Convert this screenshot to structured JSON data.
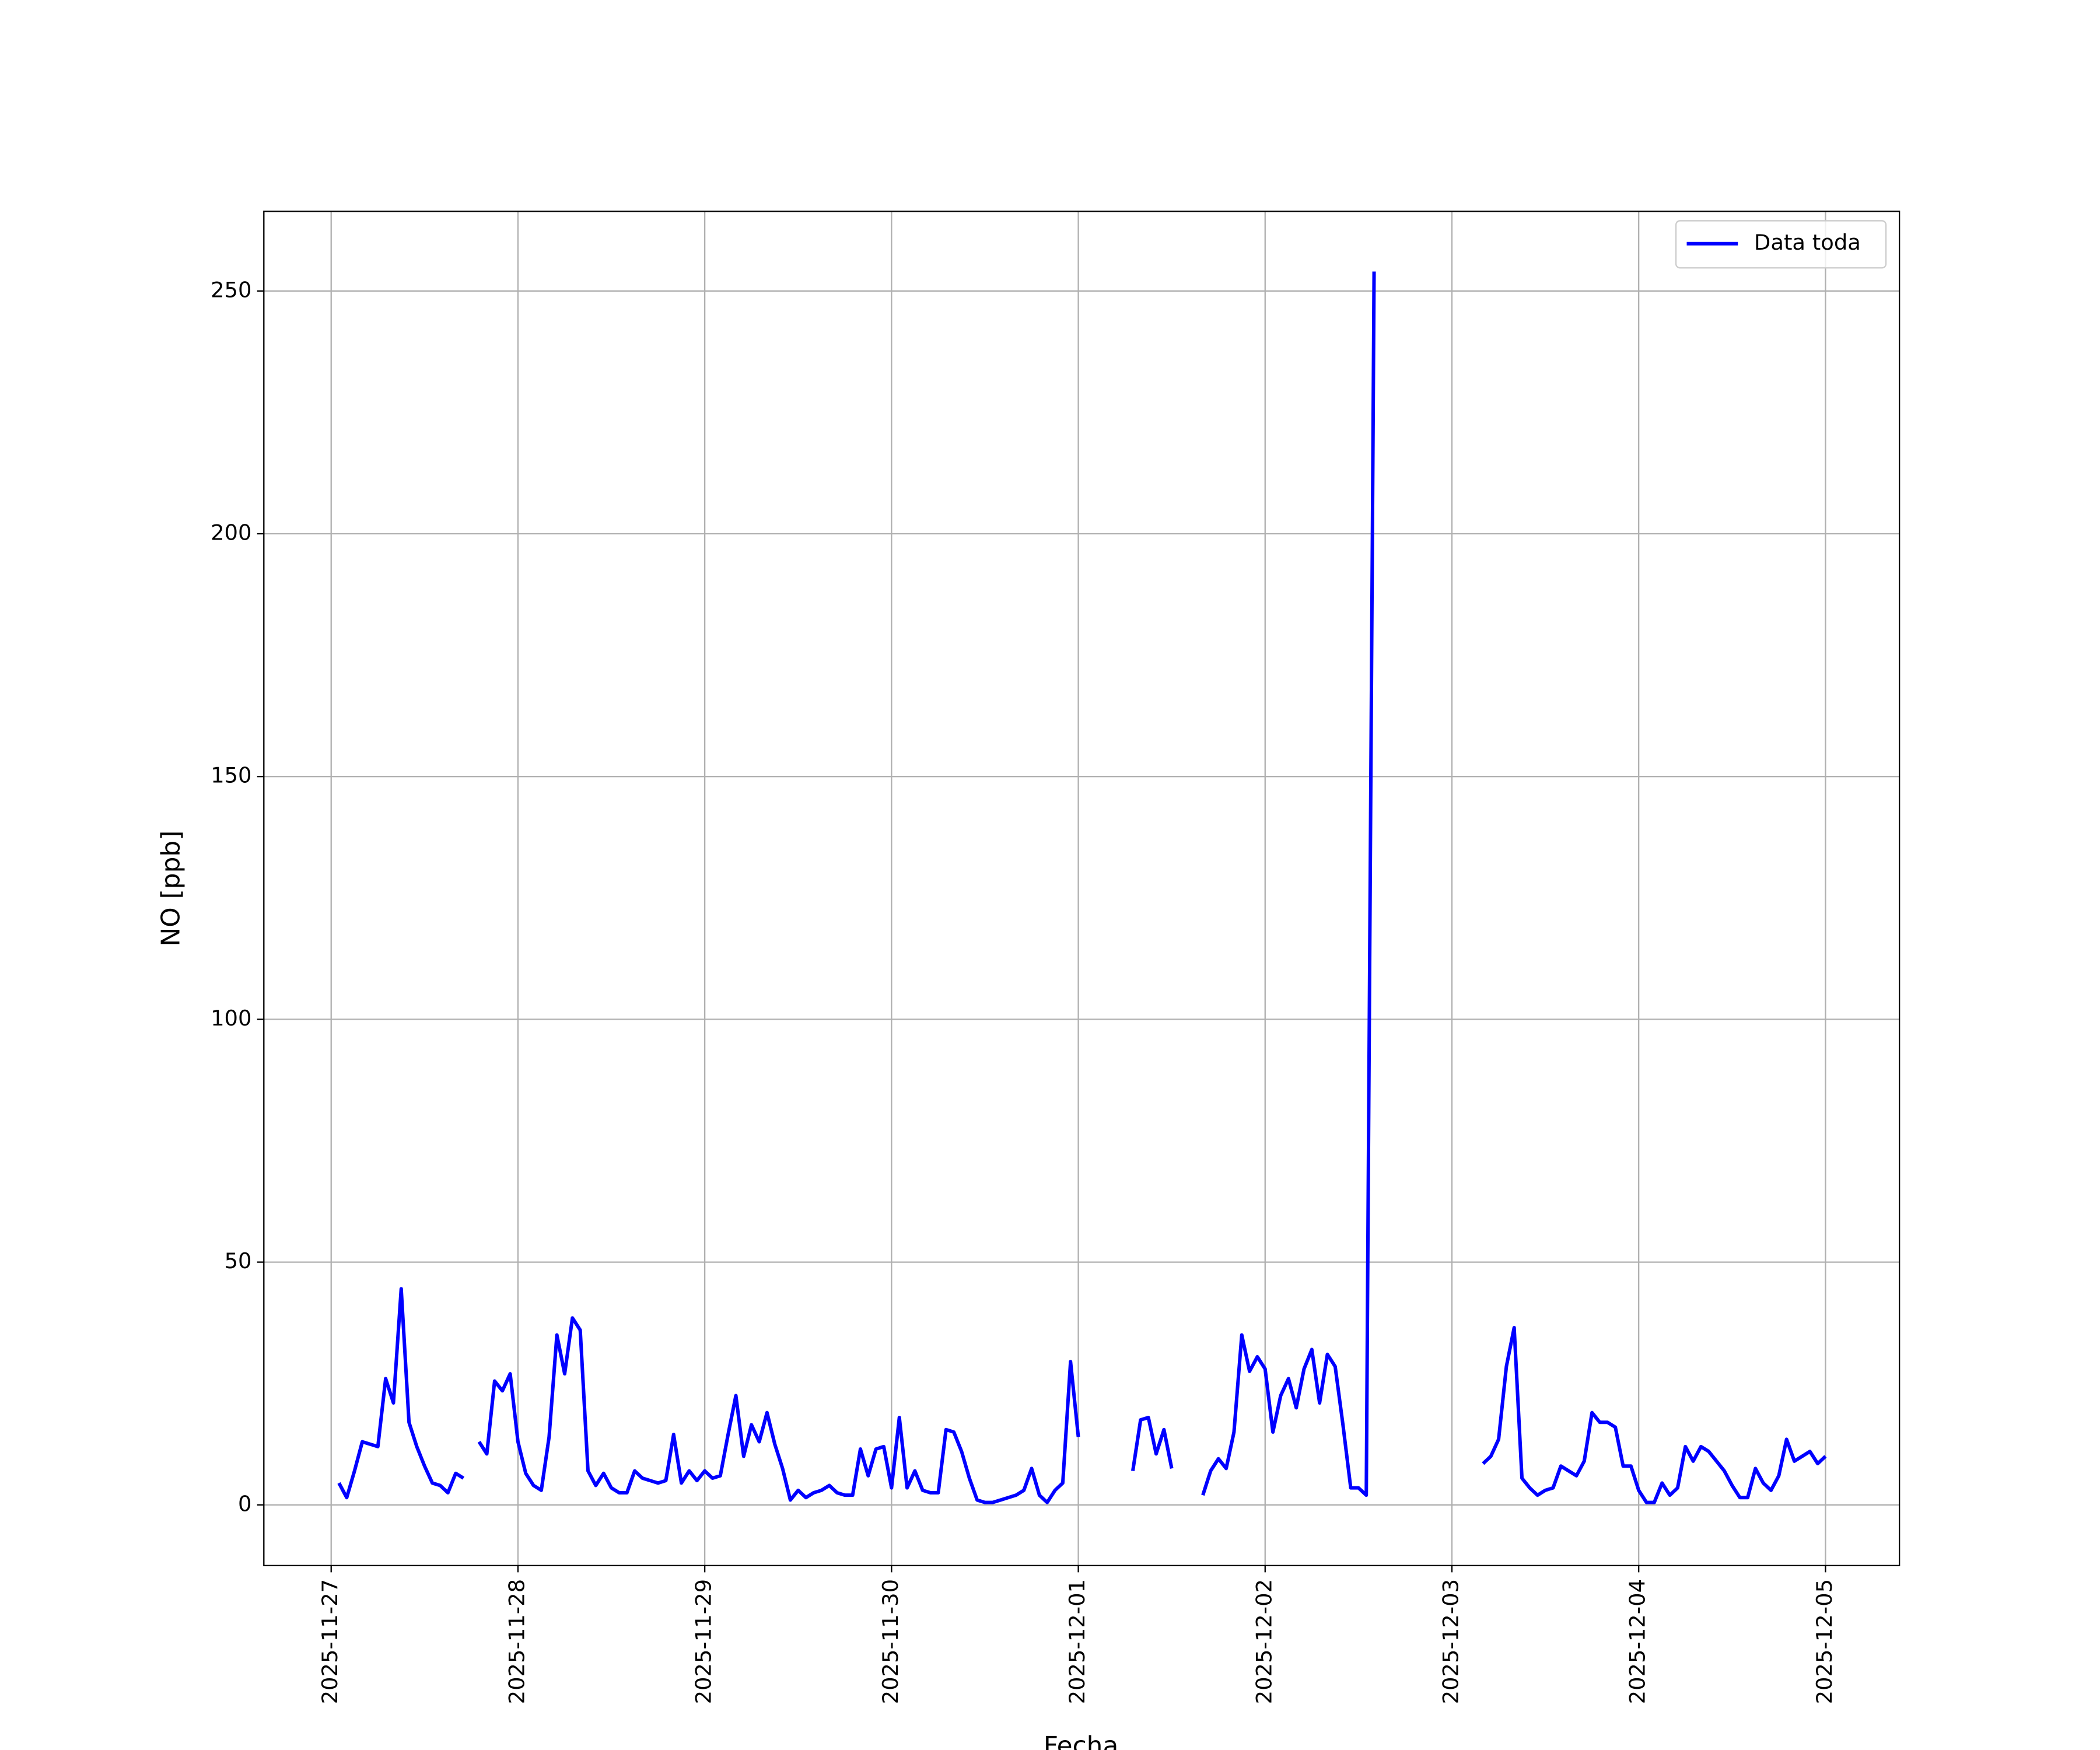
{
  "chart_data": {
    "type": "line",
    "xlabel": "Fecha",
    "ylabel": "NO [ppb]",
    "x": [
      "2025-11-27 01:00",
      "2025-11-27 02:00",
      "2025-11-27 03:00",
      "2025-11-27 04:00",
      "2025-11-27 05:00",
      "2025-11-27 06:00",
      "2025-11-27 07:00",
      "2025-11-27 08:00",
      "2025-11-27 09:00",
      "2025-11-27 10:00",
      "2025-11-27 11:00",
      "2025-11-27 12:00",
      "2025-11-27 13:00",
      "2025-11-27 14:00",
      "2025-11-27 15:00",
      "2025-11-27 16:00",
      "2025-11-27 17:00",
      "2025-11-27 18:00",
      "2025-11-27 19:00",
      "2025-11-27 20:00",
      "2025-11-27 21:00",
      "2025-11-27 22:00",
      "2025-11-27 23:00",
      "2025-11-28 00:00",
      "2025-11-28 01:00",
      "2025-11-28 02:00",
      "2025-11-28 03:00",
      "2025-11-28 04:00",
      "2025-11-28 05:00",
      "2025-11-28 06:00",
      "2025-11-28 07:00",
      "2025-11-28 08:00",
      "2025-11-28 09:00",
      "2025-11-28 10:00",
      "2025-11-28 11:00",
      "2025-11-28 12:00",
      "2025-11-28 13:00",
      "2025-11-28 14:00",
      "2025-11-28 15:00",
      "2025-11-28 16:00",
      "2025-11-28 17:00",
      "2025-11-28 18:00",
      "2025-11-28 19:00",
      "2025-11-28 20:00",
      "2025-11-28 21:00",
      "2025-11-28 22:00",
      "2025-11-28 23:00",
      "2025-11-29 00:00",
      "2025-11-29 01:00",
      "2025-11-29 02:00",
      "2025-11-29 03:00",
      "2025-11-29 04:00",
      "2025-11-29 05:00",
      "2025-11-29 06:00",
      "2025-11-29 07:00",
      "2025-11-29 08:00",
      "2025-11-29 09:00",
      "2025-11-29 10:00",
      "2025-11-29 11:00",
      "2025-11-29 12:00",
      "2025-11-29 13:00",
      "2025-11-29 14:00",
      "2025-11-29 15:00",
      "2025-11-29 16:00",
      "2025-11-29 17:00",
      "2025-11-29 18:00",
      "2025-11-29 19:00",
      "2025-11-29 20:00",
      "2025-11-29 21:00",
      "2025-11-29 22:00",
      "2025-11-29 23:00",
      "2025-11-30 00:00",
      "2025-11-30 01:00",
      "2025-11-30 02:00",
      "2025-11-30 03:00",
      "2025-11-30 04:00",
      "2025-11-30 05:00",
      "2025-11-30 06:00",
      "2025-11-30 07:00",
      "2025-11-30 08:00",
      "2025-11-30 09:00",
      "2025-11-30 10:00",
      "2025-11-30 11:00",
      "2025-11-30 12:00",
      "2025-11-30 13:00",
      "2025-11-30 14:00",
      "2025-11-30 15:00",
      "2025-11-30 16:00",
      "2025-11-30 17:00",
      "2025-11-30 18:00",
      "2025-11-30 19:00",
      "2025-11-30 20:00",
      "2025-11-30 21:00",
      "2025-11-30 22:00",
      "2025-11-30 23:00",
      "2025-12-01 00:00",
      "2025-12-01 01:00",
      "2025-12-01 07:00",
      "2025-12-01 08:00",
      "2025-12-01 09:00",
      "2025-12-01 10:00",
      "2025-12-01 11:00",
      "2025-12-01 12:00",
      "2025-12-01 13:00",
      "2025-12-01 16:00",
      "2025-12-01 17:00",
      "2025-12-01 18:00",
      "2025-12-01 19:00",
      "2025-12-01 20:00",
      "2025-12-01 21:00",
      "2025-12-01 22:00",
      "2025-12-01 23:00",
      "2025-12-02 00:00",
      "2025-12-02 01:00",
      "2025-12-02 02:00",
      "2025-12-02 03:00",
      "2025-12-02 04:00",
      "2025-12-02 05:00",
      "2025-12-02 06:00",
      "2025-12-02 07:00",
      "2025-12-02 08:00",
      "2025-12-02 09:00",
      "2025-12-02 10:00",
      "2025-12-02 11:00",
      "2025-12-02 12:00",
      "2025-12-02 13:00",
      "2025-12-02 14:00",
      "2025-12-02 15:00",
      "2025-12-03 04:00",
      "2025-12-03 05:00",
      "2025-12-03 06:00",
      "2025-12-03 07:00",
      "2025-12-03 08:00",
      "2025-12-03 09:00",
      "2025-12-03 10:00",
      "2025-12-03 11:00",
      "2025-12-03 12:00",
      "2025-12-03 13:00",
      "2025-12-03 14:00",
      "2025-12-03 15:00",
      "2025-12-03 16:00",
      "2025-12-03 17:00",
      "2025-12-03 18:00",
      "2025-12-03 19:00",
      "2025-12-03 20:00",
      "2025-12-03 21:00",
      "2025-12-03 22:00",
      "2025-12-03 23:00",
      "2025-12-04 00:00",
      "2025-12-04 01:00",
      "2025-12-04 02:00",
      "2025-12-04 03:00",
      "2025-12-04 04:00",
      "2025-12-04 05:00",
      "2025-12-04 06:00",
      "2025-12-04 07:00",
      "2025-12-04 08:00",
      "2025-12-04 09:00",
      "2025-12-04 10:00",
      "2025-12-04 11:00",
      "2025-12-04 12:00",
      "2025-12-04 13:00",
      "2025-12-04 14:00",
      "2025-12-04 15:00",
      "2025-12-04 16:00",
      "2025-12-04 17:00",
      "2025-12-04 18:00",
      "2025-12-04 19:00",
      "2025-12-04 20:00",
      "2025-12-04 21:00",
      "2025-12-04 22:00",
      "2025-12-04 23:00",
      "2025-12-05 00:00"
    ],
    "series": [
      {
        "name": "Data toda",
        "color": "#0000ff",
        "values": [
          4.5,
          1.5,
          7,
          13,
          12.5,
          12,
          26,
          21,
          44.5,
          17,
          12,
          8,
          4.5,
          4,
          2.5,
          6.5,
          5.5,
          null,
          13,
          10.5,
          25.5,
          23.5,
          27,
          13,
          6.5,
          4,
          3,
          14,
          35,
          27,
          38.5,
          36,
          7,
          4,
          6.5,
          3.5,
          2.5,
          2.5,
          7,
          5.5,
          5,
          4.5,
          5,
          14.5,
          4.5,
          7,
          5,
          7,
          5.5,
          6,
          14.5,
          22.5,
          10,
          16.5,
          13,
          19,
          12.5,
          7.5,
          1,
          3,
          1.5,
          2.5,
          3,
          4,
          2.5,
          2,
          2,
          11.5,
          6,
          11.5,
          12,
          3.5,
          18,
          3.5,
          7,
          3,
          2.5,
          2.5,
          15.5,
          15,
          11,
          5.5,
          1,
          0.5,
          0.5,
          1,
          1.5,
          2,
          3,
          7.5,
          2,
          0.5,
          3,
          4.5,
          29.5,
          14,
          null,
          7,
          17.5,
          18,
          10.5,
          15.5,
          7.5,
          null,
          2,
          7,
          9.5,
          7.5,
          15,
          35,
          27.5,
          30.5,
          28,
          15,
          22.5,
          26,
          20,
          28,
          32,
          21,
          31,
          28.5,
          16.5,
          3.5,
          3.5,
          2,
          254,
          null,
          8.5,
          10,
          13.5,
          28.5,
          36.5,
          5.5,
          3.5,
          2,
          3,
          3.5,
          8,
          7,
          6,
          9,
          19,
          17,
          17,
          16,
          8,
          8,
          3,
          0.5,
          0.5,
          4.5,
          2,
          3.5,
          12,
          9,
          12,
          11,
          9,
          7,
          4,
          1.5,
          1.5,
          7.5,
          4.5,
          3,
          6,
          13.5,
          9,
          10,
          11,
          8.5,
          10
        ]
      }
    ],
    "xlim": [
      "2025-11-26 15:21",
      "2025-12-05 09:30"
    ],
    "xticks": [
      "2025-11-27",
      "2025-11-28",
      "2025-11-29",
      "2025-11-30",
      "2025-12-01",
      "2025-12-02",
      "2025-12-03",
      "2025-12-04",
      "2025-12-05"
    ],
    "ylim": [
      -12.5,
      266.4
    ],
    "yticks": [
      0,
      50,
      100,
      150,
      200,
      250
    ],
    "grid": true,
    "legend": "upper right"
  }
}
